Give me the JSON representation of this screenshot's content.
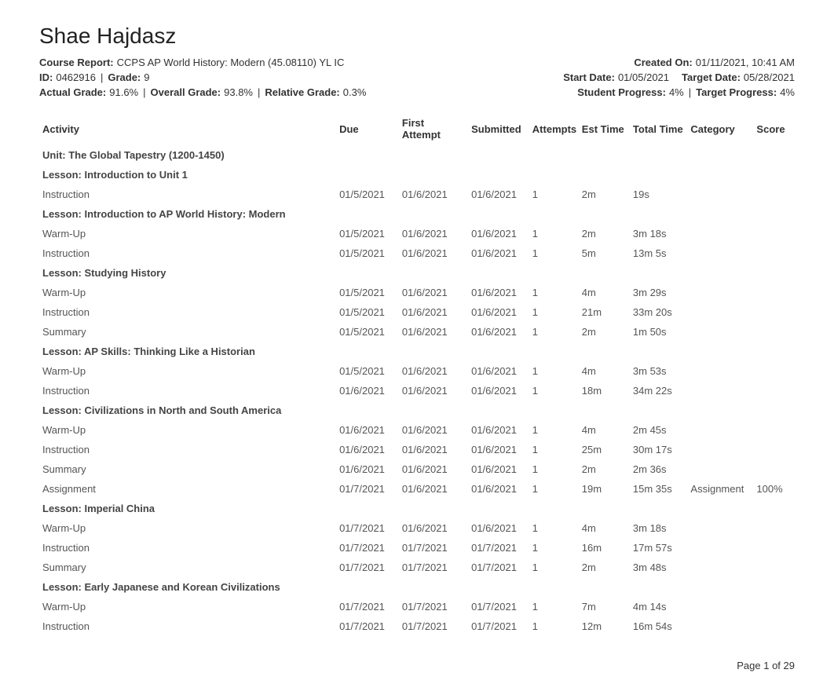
{
  "student_name": "Shae Hajdasz",
  "header": {
    "course_report_label": "Course Report:",
    "course_report_value": "CCPS AP World History: Modern (45.08110) YL IC",
    "created_label": "Created On:",
    "created_value": "01/11/2021, 10:41 AM",
    "id_label": "ID:",
    "id_value": "0462916",
    "grade_label": "Grade:",
    "grade_value": "9",
    "start_date_label": "Start Date:",
    "start_date_value": "01/05/2021",
    "target_date_label": "Target Date:",
    "target_date_value": "05/28/2021",
    "actual_grade_label": "Actual Grade:",
    "actual_grade_value": "91.6%",
    "overall_grade_label": "Overall Grade:",
    "overall_grade_value": "93.8%",
    "relative_grade_label": "Relative Grade:",
    "relative_grade_value": "0.3%",
    "student_progress_label": "Student Progress:",
    "student_progress_value": "4%",
    "target_progress_label": "Target Progress:",
    "target_progress_value": "4%"
  },
  "columns": {
    "activity": "Activity",
    "due": "Due",
    "first_attempt": "First Attempt",
    "submitted": "Submitted",
    "attempts": "Attempts",
    "est_time": "Est Time",
    "total_time": "Total Time",
    "category": "Category",
    "score": "Score"
  },
  "rows": [
    {
      "type": "unit",
      "activity": "Unit: The Global Tapestry (1200-1450)"
    },
    {
      "type": "lesson",
      "activity": "Lesson: Introduction to Unit 1"
    },
    {
      "type": "item",
      "activity": "Instruction",
      "due": "01/5/2021",
      "first": "01/6/2021",
      "submitted": "01/6/2021",
      "attempts": "1",
      "est": "2m",
      "total": "19s",
      "category": "",
      "score": ""
    },
    {
      "type": "lesson",
      "activity": "Lesson: Introduction to AP World History: Modern"
    },
    {
      "type": "item",
      "activity": "Warm-Up",
      "due": "01/5/2021",
      "first": "01/6/2021",
      "submitted": "01/6/2021",
      "attempts": "1",
      "est": "2m",
      "total": "3m 18s",
      "category": "",
      "score": ""
    },
    {
      "type": "item",
      "activity": "Instruction",
      "due": "01/5/2021",
      "first": "01/6/2021",
      "submitted": "01/6/2021",
      "attempts": "1",
      "est": "5m",
      "total": "13m 5s",
      "category": "",
      "score": ""
    },
    {
      "type": "lesson",
      "activity": "Lesson: Studying History"
    },
    {
      "type": "item",
      "activity": "Warm-Up",
      "due": "01/5/2021",
      "first": "01/6/2021",
      "submitted": "01/6/2021",
      "attempts": "1",
      "est": "4m",
      "total": "3m 29s",
      "category": "",
      "score": ""
    },
    {
      "type": "item",
      "activity": "Instruction",
      "due": "01/5/2021",
      "first": "01/6/2021",
      "submitted": "01/6/2021",
      "attempts": "1",
      "est": "21m",
      "total": "33m 20s",
      "category": "",
      "score": ""
    },
    {
      "type": "item",
      "activity": "Summary",
      "due": "01/5/2021",
      "first": "01/6/2021",
      "submitted": "01/6/2021",
      "attempts": "1",
      "est": "2m",
      "total": "1m 50s",
      "category": "",
      "score": ""
    },
    {
      "type": "lesson",
      "activity": "Lesson: AP Skills: Thinking Like a Historian"
    },
    {
      "type": "item",
      "activity": "Warm-Up",
      "due": "01/5/2021",
      "first": "01/6/2021",
      "submitted": "01/6/2021",
      "attempts": "1",
      "est": "4m",
      "total": "3m 53s",
      "category": "",
      "score": ""
    },
    {
      "type": "item",
      "activity": "Instruction",
      "due": "01/6/2021",
      "first": "01/6/2021",
      "submitted": "01/6/2021",
      "attempts": "1",
      "est": "18m",
      "total": "34m 22s",
      "category": "",
      "score": ""
    },
    {
      "type": "lesson",
      "activity": "Lesson: Civilizations in North and South America"
    },
    {
      "type": "item",
      "activity": "Warm-Up",
      "due": "01/6/2021",
      "first": "01/6/2021",
      "submitted": "01/6/2021",
      "attempts": "1",
      "est": "4m",
      "total": "2m 45s",
      "category": "",
      "score": ""
    },
    {
      "type": "item",
      "activity": "Instruction",
      "due": "01/6/2021",
      "first": "01/6/2021",
      "submitted": "01/6/2021",
      "attempts": "1",
      "est": "25m",
      "total": "30m 17s",
      "category": "",
      "score": ""
    },
    {
      "type": "item",
      "activity": "Summary",
      "due": "01/6/2021",
      "first": "01/6/2021",
      "submitted": "01/6/2021",
      "attempts": "1",
      "est": "2m",
      "total": "2m 36s",
      "category": "",
      "score": ""
    },
    {
      "type": "item",
      "activity": "Assignment",
      "due": "01/7/2021",
      "first": "01/6/2021",
      "submitted": "01/6/2021",
      "attempts": "1",
      "est": "19m",
      "total": "15m 35s",
      "category": "Assignment",
      "score": "100%"
    },
    {
      "type": "lesson",
      "activity": "Lesson: Imperial China"
    },
    {
      "type": "item",
      "activity": "Warm-Up",
      "due": "01/7/2021",
      "first": "01/6/2021",
      "submitted": "01/6/2021",
      "attempts": "1",
      "est": "4m",
      "total": "3m 18s",
      "category": "",
      "score": ""
    },
    {
      "type": "item",
      "activity": "Instruction",
      "due": "01/7/2021",
      "first": "01/7/2021",
      "submitted": "01/7/2021",
      "attempts": "1",
      "est": "16m",
      "total": "17m 57s",
      "category": "",
      "score": ""
    },
    {
      "type": "item",
      "activity": "Summary",
      "due": "01/7/2021",
      "first": "01/7/2021",
      "submitted": "01/7/2021",
      "attempts": "1",
      "est": "2m",
      "total": "3m 48s",
      "category": "",
      "score": ""
    },
    {
      "type": "lesson",
      "activity": "Lesson: Early Japanese and Korean Civilizations"
    },
    {
      "type": "item",
      "activity": "Warm-Up",
      "due": "01/7/2021",
      "first": "01/7/2021",
      "submitted": "01/7/2021",
      "attempts": "1",
      "est": "7m",
      "total": "4m 14s",
      "category": "",
      "score": ""
    },
    {
      "type": "item",
      "activity": "Instruction",
      "due": "01/7/2021",
      "first": "01/7/2021",
      "submitted": "01/7/2021",
      "attempts": "1",
      "est": "12m",
      "total": "16m 54s",
      "category": "",
      "score": ""
    }
  ],
  "footer": {
    "page_text": "Page 1 of 29"
  }
}
